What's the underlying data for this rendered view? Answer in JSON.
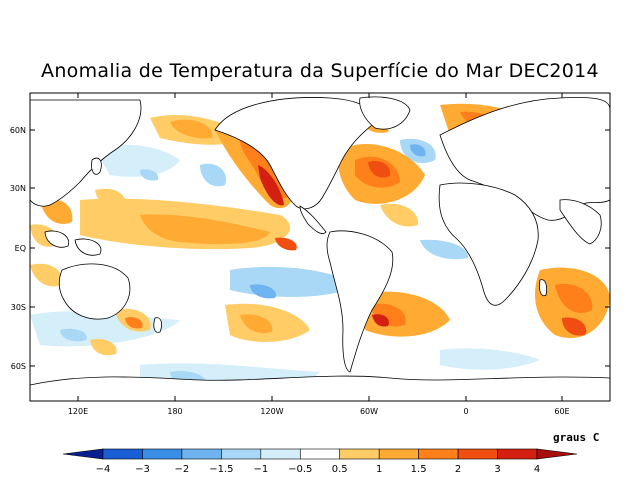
{
  "title": "Anomalia de Temperatura da Superfície do Mar DEC2014",
  "units": "graus C",
  "latitude_labels": [
    "60N",
    "30N",
    "EQ",
    "30S",
    "60S"
  ],
  "longitude_labels": [
    "120E",
    "180",
    "120W",
    "60W",
    "0",
    "60E"
  ],
  "colorbar": {
    "labels": [
      "-4",
      "-3",
      "-2",
      "-1.5",
      "-1",
      "-0.5",
      "0.5",
      "1",
      "1.5",
      "2",
      "3",
      "4"
    ],
    "colors": [
      "#0a1f8f",
      "#1a5ed6",
      "#3b8ee8",
      "#6fb3f0",
      "#a8d8f5",
      "#d4eefa",
      "#ffffff",
      "#ffcc66",
      "#ffaa33",
      "#ff7f1a",
      "#f04e10",
      "#d42010",
      "#a80d0d"
    ]
  },
  "palette": {
    "land": "#ffffff",
    "coast": "#000000",
    "warm1": "#ffcc66",
    "warm2": "#ffaa33",
    "warm3": "#ff7f1a",
    "warm4": "#f04e10",
    "warm5": "#d42010",
    "cool1": "#d4eefa",
    "cool2": "#a8d8f5",
    "cool3": "#6fb3f0",
    "cool4": "#3b8ee8",
    "cool5": "#1a5ed6"
  }
}
